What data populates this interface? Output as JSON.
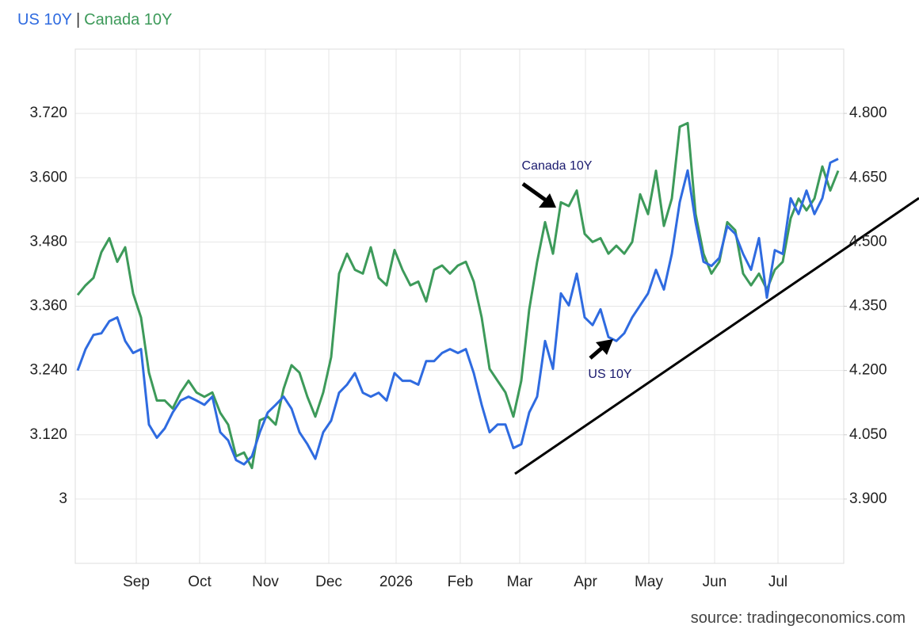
{
  "chart_data": {
    "type": "line",
    "legend_separator": "|",
    "source": "source: tradingeconomics.com",
    "annotations": [
      "Canada 10Y",
      "US 10Y"
    ],
    "grid": true,
    "ylim": [
      2.88,
      3.84
    ],
    "yticks": [
      3,
      {
        "value": 3.12,
        "label": "3.120"
      },
      {
        "value": 3.24,
        "label": "3.240"
      },
      {
        "value": 3.36,
        "label": "3.360"
      },
      {
        "value": 3.48,
        "label": "3.480"
      },
      {
        "value": 3.6,
        "label": "3.600"
      },
      {
        "value": 3.72,
        "label": "3.720"
      }
    ],
    "y2lim": [
      3.75,
      4.95
    ],
    "y2ticks": [
      {
        "value": 3.9,
        "label": "3.900"
      },
      {
        "value": 4.05,
        "label": "4.050"
      },
      {
        "value": 4.2,
        "label": "4.200"
      },
      {
        "value": 4.35,
        "label": "4.350"
      },
      {
        "value": 4.5,
        "label": "4.500"
      },
      {
        "value": 4.65,
        "label": "4.650"
      },
      {
        "value": 4.8,
        "label": "4.800"
      }
    ],
    "xticks": [
      {
        "value": 7.4,
        "label": "Sep"
      },
      {
        "value": 15.4,
        "label": "Oct"
      },
      {
        "value": 23.7,
        "label": "Nov"
      },
      {
        "value": 31.7,
        "label": "Dec"
      },
      {
        "value": 40.2,
        "label": "2026"
      },
      {
        "value": 48.3,
        "label": "Feb"
      },
      {
        "value": 55.8,
        "label": "Mar"
      },
      {
        "value": 64.1,
        "label": "Apr"
      },
      {
        "value": 72.1,
        "label": "May"
      },
      {
        "value": 80.4,
        "label": "Jun"
      },
      {
        "value": 88.4,
        "label": "Jul"
      }
    ],
    "series": [
      {
        "name": "US 10Y",
        "color": "#2f6be0",
        "axis": "y2",
        "values": [
          4.2,
          4.25,
          4.283,
          4.287,
          4.315,
          4.324,
          4.269,
          4.241,
          4.25,
          4.074,
          4.043,
          4.065,
          4.102,
          4.13,
          4.139,
          4.13,
          4.12,
          4.139,
          4.056,
          4.037,
          3.991,
          3.981,
          4.0,
          4.056,
          4.102,
          4.12,
          4.139,
          4.111,
          4.056,
          4.028,
          3.994,
          4.056,
          4.083,
          4.148,
          4.167,
          4.194,
          4.148,
          4.139,
          4.148,
          4.13,
          4.194,
          4.176,
          4.176,
          4.167,
          4.222,
          4.222,
          4.241,
          4.25,
          4.241,
          4.25,
          4.194,
          4.12,
          4.056,
          4.074,
          4.074,
          4.019,
          4.028,
          4.102,
          4.139,
          4.269,
          4.204,
          4.38,
          4.352,
          4.426,
          4.324,
          4.306,
          4.343,
          4.278,
          4.269,
          4.287,
          4.324,
          4.352,
          4.38,
          4.435,
          4.389,
          4.472,
          4.593,
          4.667,
          4.546,
          4.454,
          4.444,
          4.463,
          4.537,
          4.519,
          4.472,
          4.435,
          4.509,
          4.37,
          4.481,
          4.472,
          4.602,
          4.565,
          4.62,
          4.565,
          4.602,
          4.685,
          4.694
        ]
      },
      {
        "name": "Canada 10Y",
        "color": "#3d9a5a",
        "values": [
          3.381,
          3.399,
          3.413,
          3.461,
          3.487,
          3.443,
          3.47,
          3.384,
          3.339,
          3.236,
          3.184,
          3.184,
          3.169,
          3.199,
          3.221,
          3.199,
          3.191,
          3.199,
          3.161,
          3.139,
          3.08,
          3.087,
          3.058,
          3.147,
          3.154,
          3.139,
          3.206,
          3.25,
          3.236,
          3.191,
          3.154,
          3.199,
          3.265,
          3.421,
          3.458,
          3.428,
          3.421,
          3.47,
          3.413,
          3.399,
          3.465,
          3.428,
          3.399,
          3.406,
          3.369,
          3.428,
          3.436,
          3.421,
          3.436,
          3.443,
          3.406,
          3.339,
          3.243,
          3.221,
          3.199,
          3.154,
          3.221,
          3.354,
          3.443,
          3.517,
          3.458,
          3.554,
          3.547,
          3.576,
          3.495,
          3.48,
          3.487,
          3.458,
          3.473,
          3.458,
          3.48,
          3.569,
          3.532,
          3.613,
          3.51,
          3.561,
          3.695,
          3.702,
          3.532,
          3.458,
          3.421,
          3.443,
          3.517,
          3.502,
          3.421,
          3.399,
          3.421,
          3.391,
          3.428,
          3.443,
          3.524,
          3.561,
          3.539,
          3.561,
          3.621,
          3.576,
          3.613
        ]
      }
    ]
  }
}
